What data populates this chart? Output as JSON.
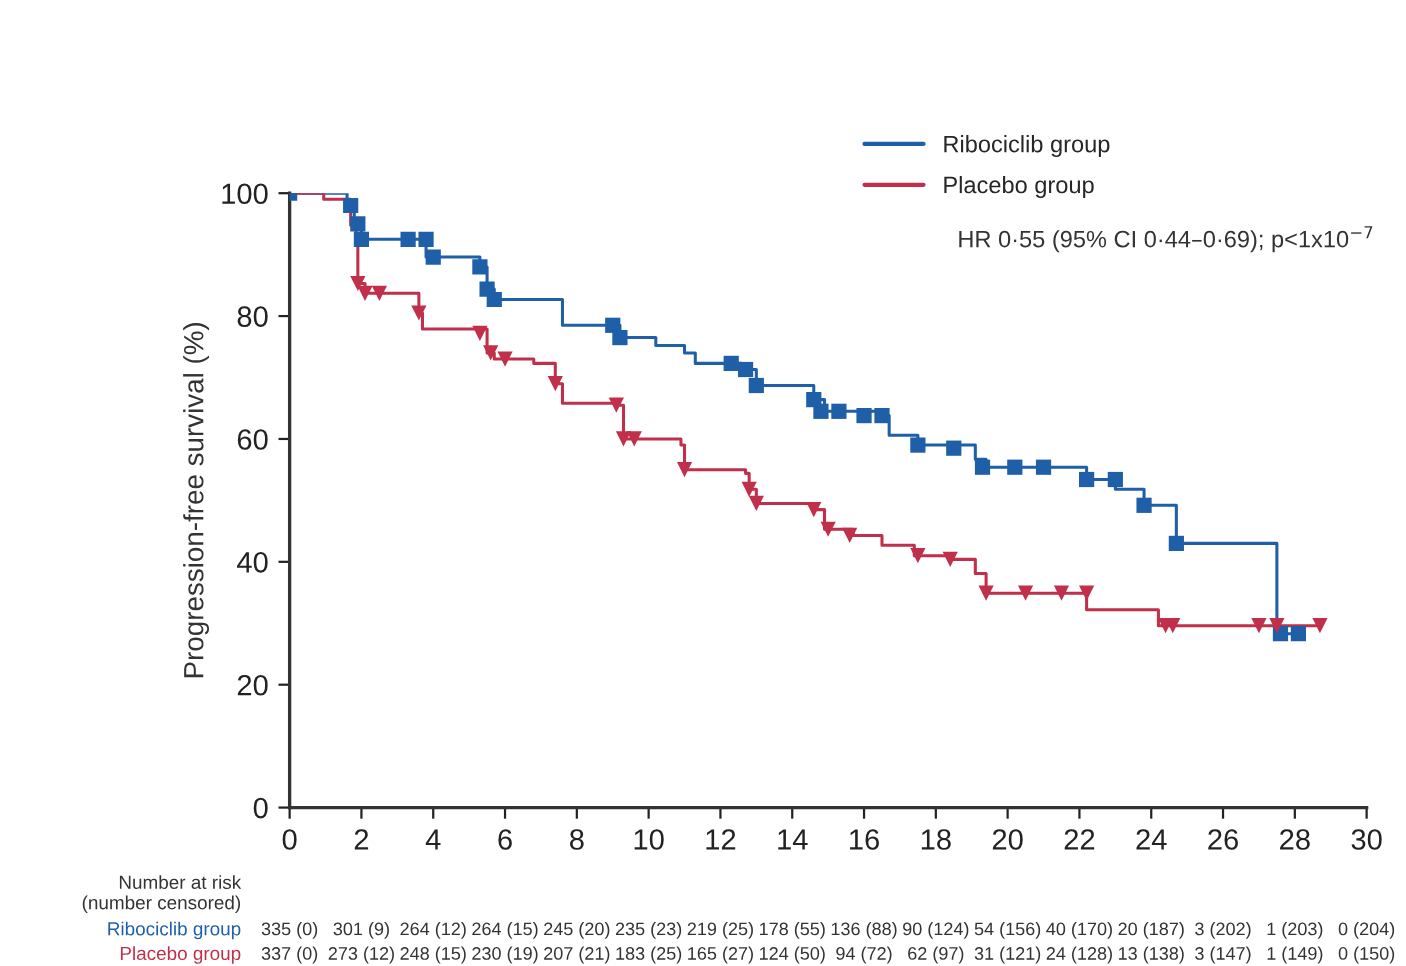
{
  "chart_data": {
    "type": "step",
    "ylabel": "Progression-free survival (%)",
    "xlim": [
      0,
      30
    ],
    "xticks": [
      0,
      2,
      4,
      6,
      8,
      10,
      12,
      14,
      16,
      18,
      20,
      22,
      24,
      26,
      28,
      30
    ],
    "ylim": [
      0,
      100
    ],
    "yticks": [
      0,
      20,
      40,
      60,
      80,
      100
    ],
    "grid": false,
    "legend": "top right",
    "line_style": "solid",
    "series": [
      {
        "name": "Ribociclib group",
        "color": "#1f5fa8",
        "x": [
          0,
          1.6,
          1.8,
          2.0,
          3.8,
          5.3,
          5.5,
          5.7,
          7.6,
          9.2,
          10.2,
          11.0,
          11.3,
          12.6,
          13.0,
          14.6,
          14.9,
          16.5,
          16.7,
          17.5,
          19.1,
          19.4,
          22.2,
          23.0,
          23.8,
          24.7,
          27.5,
          28.1
        ],
        "values": [
          100,
          98,
          95,
          92.5,
          89.6,
          88,
          84.4,
          82.7,
          78.5,
          76.5,
          75.2,
          74,
          72.3,
          71.3,
          68.7,
          66.4,
          64.5,
          63.8,
          60.6,
          59,
          56.7,
          55.4,
          53.4,
          51.8,
          49.2,
          43,
          28.3,
          28.3
        ]
      },
      {
        "name": "Placebo group",
        "color": "#c0304a",
        "x": [
          0,
          0.95,
          1.7,
          1.85,
          1.9,
          2.1,
          3.6,
          3.7,
          5.5,
          5.7,
          6.8,
          7.4,
          7.6,
          9.1,
          9.3,
          10.9,
          11.0,
          12.7,
          12.8,
          13.0,
          14.6,
          14.9,
          15.7,
          16.5,
          17.4,
          18.4,
          19.1,
          19.4,
          22.2,
          24.2,
          28.7
        ],
        "values": [
          100,
          99,
          94.8,
          92.5,
          85.3,
          83.7,
          80.5,
          77.9,
          74,
          73,
          72.3,
          69,
          65.8,
          65.5,
          60,
          59,
          55,
          54.4,
          51.8,
          49.5,
          48.5,
          45.3,
          44.3,
          42.7,
          41,
          40.4,
          38.1,
          34.9,
          32.2,
          29.6,
          29.6
        ]
      },
      {
        "color": "#1f5fa8",
        "type": "scatter",
        "marker": "square",
        "x": [
          0,
          1.7,
          1.9,
          2.0,
          3.3,
          3.8,
          4.0,
          5.3,
          5.5,
          5.7,
          9.0,
          9.2,
          12.3,
          12.7,
          13.0,
          14.6,
          14.8,
          15.3,
          16.0,
          16.5,
          17.5,
          18.5,
          19.3,
          20.2,
          21.0,
          22.2,
          23.0,
          23.8,
          24.7,
          27.6,
          28.1
        ],
        "values": [
          100,
          98,
          95,
          92.5,
          92.5,
          92.5,
          89.6,
          88,
          84.4,
          82.7,
          78.5,
          76.5,
          72.3,
          71.3,
          68.7,
          66.4,
          64.5,
          64.5,
          63.8,
          63.8,
          59,
          58.5,
          55.4,
          55.4,
          55.4,
          53.4,
          53.4,
          49.2,
          43,
          28.3,
          28.3
        ]
      },
      {
        "color": "#c0304a",
        "type": "scatter",
        "marker": "triangle",
        "x": [
          1.9,
          2.1,
          2.5,
          3.6,
          5.3,
          5.6,
          6.0,
          7.4,
          9.1,
          9.3,
          9.6,
          11.0,
          12.8,
          13.0,
          14.6,
          15.0,
          15.6,
          17.5,
          18.4,
          19.4,
          20.5,
          21.5,
          22.2,
          24.4,
          24.6,
          27.0,
          27.5,
          28.7
        ],
        "values": [
          85.3,
          83.7,
          83.7,
          80.5,
          77.2,
          74,
          73,
          69,
          65.5,
          60,
          60,
          55,
          51.8,
          49.5,
          48.5,
          45.3,
          44.3,
          41,
          40.4,
          34.9,
          34.9,
          34.9,
          34.9,
          29.6,
          29.6,
          29.6,
          29.6,
          29.6
        ]
      }
    ],
    "annotations": [
      "HR 0·55 (95% CI 0·44–0·69); p<1x10$^{−7}$",
      "Number at risk\n(number censored)",
      "Ribociclib group",
      "335 (0)",
      "301 (9)",
      "264 (12)",
      "264 (15)",
      "245 (20)",
      "235 (23)",
      "219 (25)",
      "178 (55)",
      "136 (88)",
      "90 (124)",
      "54 (156)",
      "40 (170)",
      "20 (187)",
      "3 (202)",
      "1 (203)",
      "0 (204)",
      "Placebo group",
      "337 (0)",
      "273 (12)",
      "248 (15)",
      "230 (19)",
      "207 (21)",
      "183 (25)",
      "165 (27)",
      "124 (50)",
      "94 (72)",
      "62 (97)",
      "31 (121)",
      "24 (128)",
      "13 (138)",
      "3 (147)",
      "1 (149)",
      "0 (150)"
    ]
  }
}
